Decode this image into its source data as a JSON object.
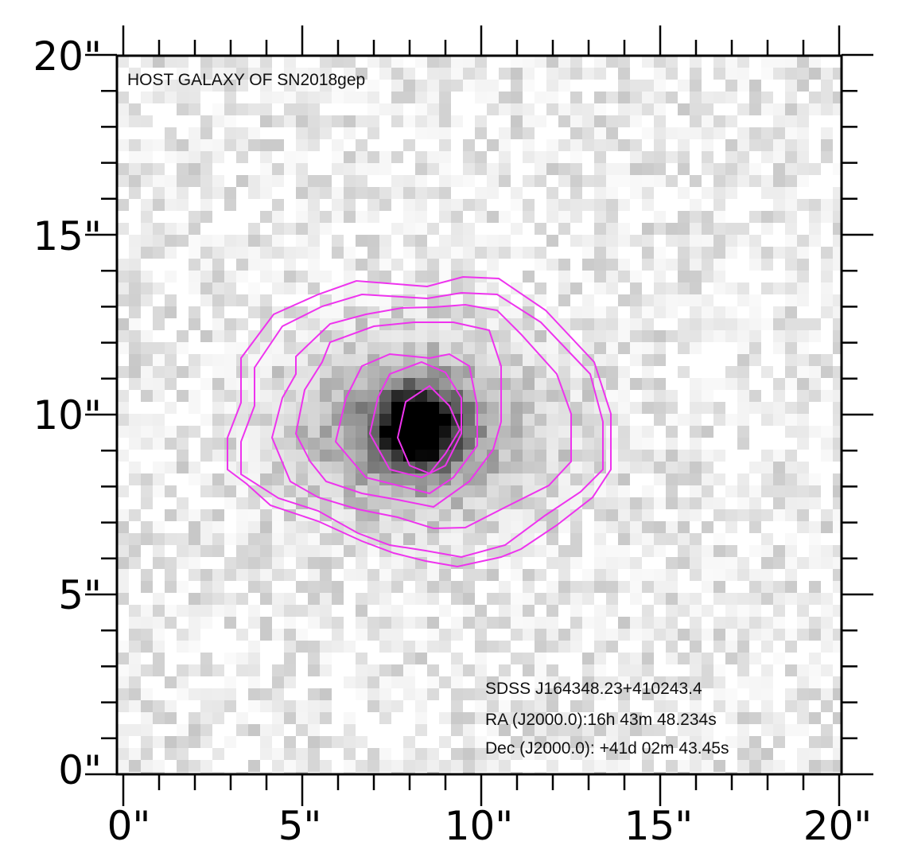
{
  "figure": {
    "title": "HOST GALAXY OF SN2018gep",
    "object_name": "SDSS J164348.23+410243.4",
    "ra": "RA (J2000.0):16h 43m 48.234s",
    "dec": "Dec (J2000.0): +41d 02m 43.45s"
  },
  "axes": {
    "x_tick_labels": [
      "0\"",
      "5\"",
      "10\"",
      "15\"",
      "20\""
    ],
    "y_tick_labels": [
      "20\"",
      "15\"",
      "10\"",
      "5\"",
      "0\""
    ],
    "x_range_arcsec": [
      0,
      20
    ],
    "y_range_arcsec": [
      0,
      20
    ],
    "minor_tick_step_arcsec": 1
  },
  "image": {
    "colormap": "grayscale-inverted",
    "galaxy_center_arcsec": [
      8.2,
      9.6
    ],
    "contour_color": "#ee33ee"
  }
}
